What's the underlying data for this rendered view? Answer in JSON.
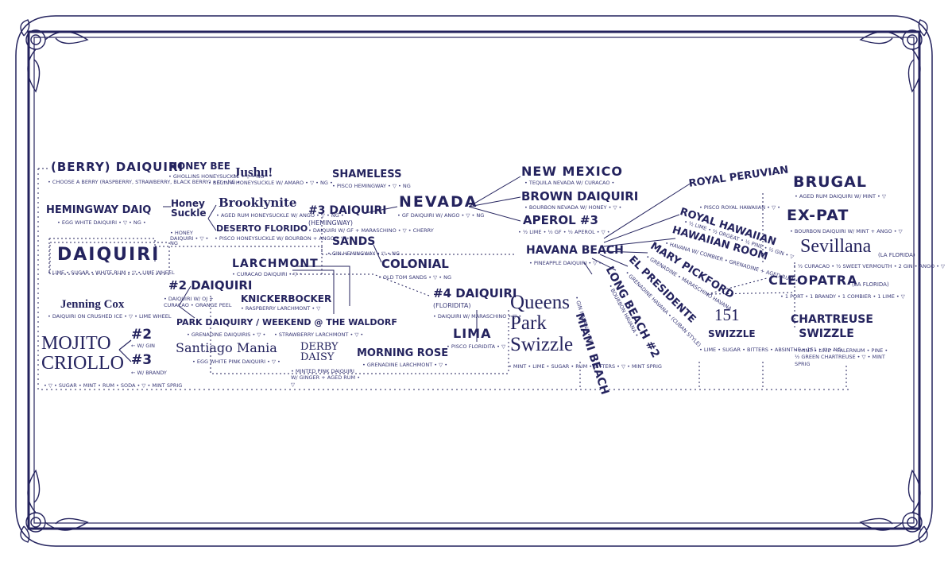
{
  "palette": {
    "ink": "#24235e",
    "paper": "#ffffff"
  },
  "nodes": {
    "berry_daiquiri": "(BERRY) DAIQUIRI",
    "berry_daiquiri_note": "• CHOOSE A BERRY (RASPBERRY, STRAWBERRY, BLACK BERRY) • ▽ • NG •",
    "honey_bee": "HONEY BEE",
    "honey_bee_note": "• GHOLLINS HONEYSUCKLE • ▽ • NG",
    "jushu": "Jushu!",
    "jushu_note": "• BEGIN A HONEYSUCKLE W/ AMARO • ▽ • NG •",
    "honey_suckle": "Honey Suckle",
    "honey_suckle_note": "• HONEY DAIQUIRI • ▽ • NG",
    "brooklynite": "Brooklynite",
    "brooklynite_note": "• AGED RUM HONEYSUCKLE W/ ANGO • ▽ • NG •",
    "deserto_florido": "DESERTO FLORIDO",
    "deserto_note": "• PISCO HONEYSUCKLE W/ BOURBON + ANGO • ▽ •",
    "hemingway_daiquiri": "HEMINGWAY DAIQ",
    "hemingway_note": "• EGG WHITE DAIQUIRI • ▽ • NG •",
    "daiquiri": "DAIQUIRI",
    "daiquiri_note": "• LIME • SUGAR • WHITE RUM • ▽ • LIME WHEEL",
    "jenning_cox": "Jenning Cox",
    "jenning_note": "• DAIQUIRI ON CRUSHED ICE • ▽ • LIME WHEEL",
    "mojito": "MOJITO CRIOLLO",
    "mojito_note": "• ▽ • SUGAR • MINT • RUM • SODA • ▽ • MINT SPRIG",
    "no2": "#2",
    "no2_note": "← W/ GIN",
    "no3_left": "#3",
    "no3_left_note": "← W/ BRANDY",
    "no2_daiquiri": "#2 DAIQUIRI",
    "no2_daiquiri_note": "• DAIQUIRI W/ OJ + CURACAO • ORANGE PEEL",
    "larchmont": "LARCHMONT",
    "larchmont_note": "• CURACAO DAIQUIRI • ▽ •",
    "knickerbocker": "KNICKERBOCKER",
    "knickerbocker_note": "• RASPBERRY LARCHMONT • ▽",
    "park_daiquiri": "PARK DAIQUIRY / WEEKEND @ THE WALDORF",
    "park_daiquiri_note": "• GRENADINE DAIQUIRIS • ▽ •",
    "saratoga": "Santiago Mania",
    "saratoga_note": "• EGG WHITE PINK DAIQUIRI • ▽ •",
    "derby": "DERBY DAISY",
    "derby_note": "• STRAWBERRY LARCHMONT • ▽ •",
    "derby_note2": "• MINTED PINK DAIQUIRI W/ GINGER + AGED RUM • ▽",
    "morning_rose": "MORNING ROSE",
    "morning_rose_note": "• GRENADINE LARCHMONT • ▽ •",
    "shameless": "SHAMELESS",
    "shameless_note": "• PISCO HEMINGWAY • ▽ • NG",
    "no3_daiquiri": "#3 DAIQUIRI",
    "no3_daiquiri_sub": "(HEMINGWAY)",
    "no3_daiquiri_note": "• DAIQUIRI W/ GF + MARASCHINO • ▽ • CHERRY",
    "nevada": "NEVADA",
    "nevada_note": "• GF DAIQUIRI W/ ANGO • ▽ • NG",
    "sands": "SANDS",
    "sands_note": "• GIN HEMINGWAY • ▽ • NG",
    "colonial": "COLONIAL",
    "colonial_note": "• OLD TOM SANDS • ▽ • NG",
    "no4_daiquiri": "#4 DAIQUIRI",
    "no4_daiquiri_sub": "(FLORIDITA)",
    "no4_daiquiri_note": "• DAIQUIRI W/ MARASCHINO • ▽ •",
    "lima": "LIMA",
    "lima_note": "• PISCO FLORIDITA • ▽",
    "new_mexico": "NEW MEXICO",
    "new_mexico_note": "• TEQUILA NEVADA W/ CURACAO •",
    "brown_daiquiri": "BROWN DAIQUIRI",
    "brown_daiquiri_note": "• BOURBON NEVADA W/ HONEY • ▽ •",
    "aperol": "APEROL #3",
    "aperol_note": "• ½ LIME • ½ GF • ½ APEROL • ▽ •",
    "havana_beach": "HAVANA BEACH",
    "havana_beach_note": "• PINEAPPLE DAIQUIRI • ▽ •",
    "queens_park": "Queens Park Swizzle",
    "queens_park_note": "• MINT • LIME • SUGAR • RUM • BITTERS • ▽ • MINT SPRIG",
    "miami_beach": "MIAMI BEACH",
    "miami_beach_note": "• GIN HAVANA • ▽",
    "long_beach": "LONG BEACH #2",
    "long_beach_note": "• BOURBON HAVANA •",
    "el_presidente": "EL PRESIDENTE",
    "el_presidente_note": "• GRENADINE HAVANA • (CUBAN STYLE)",
    "mary_pickford": "MARY PICKFORD",
    "mary_pickford_note": "• GRENADINE • MARASCHINO HAVANA •",
    "hawaiian_room": "HAWAIIAN ROOM",
    "hawaiian_room_note": "• HAVANA W/ COMBIER • GRENADINE + AGED RUM •",
    "royal_hawaiian": "ROYAL HAWAIIAN",
    "royal_hawaiian_note": "• ½ LIME • ½ ORGEAT • ½ PINE • ½ GIN • ▽",
    "royal_peruvian": "ROYAL PERUVIAN",
    "royal_peruvian_note": "• PISCO ROYAL HAWAIIAN • ▽ •",
    "no151": "151",
    "swizzle": "SWIZZLE",
    "swizzle_note": "• LIME • SUGAR • BITTERS • ABSINTHE • 151 • ▽ • NG",
    "brugal": "BRUGAL",
    "brugal_note": "• AGED RUM DAIQUIRI W/ MINT • ▽",
    "ex_pat": "EX-PAT",
    "ex_pat_note": "• BOURBON DAIQUIRI W/ MINT + ANGO • ▽",
    "sevillana": "Sevillana",
    "sevillana_sub": "(LA FLORIDA)",
    "sevillana_note": "• ½ CURACAO • ½ SWEET VERMOUTH • 2 GIN • ANGO • ▽",
    "cleopatra": "CLEOPATRA",
    "cleopatra_sub": "(LA FLORIDA)",
    "cleopatra_note": "• 1 PORT • 1 BRANDY • 1 COMBIER • 1 LIME • ▽",
    "chartreuse": "CHARTREUSE SWIZZLE",
    "chartreuse_note": "• MINT • LIME • FALERNUM • PINE • ½ GREEN CHARTREUSE • ▽ • MINT SPRIG"
  }
}
